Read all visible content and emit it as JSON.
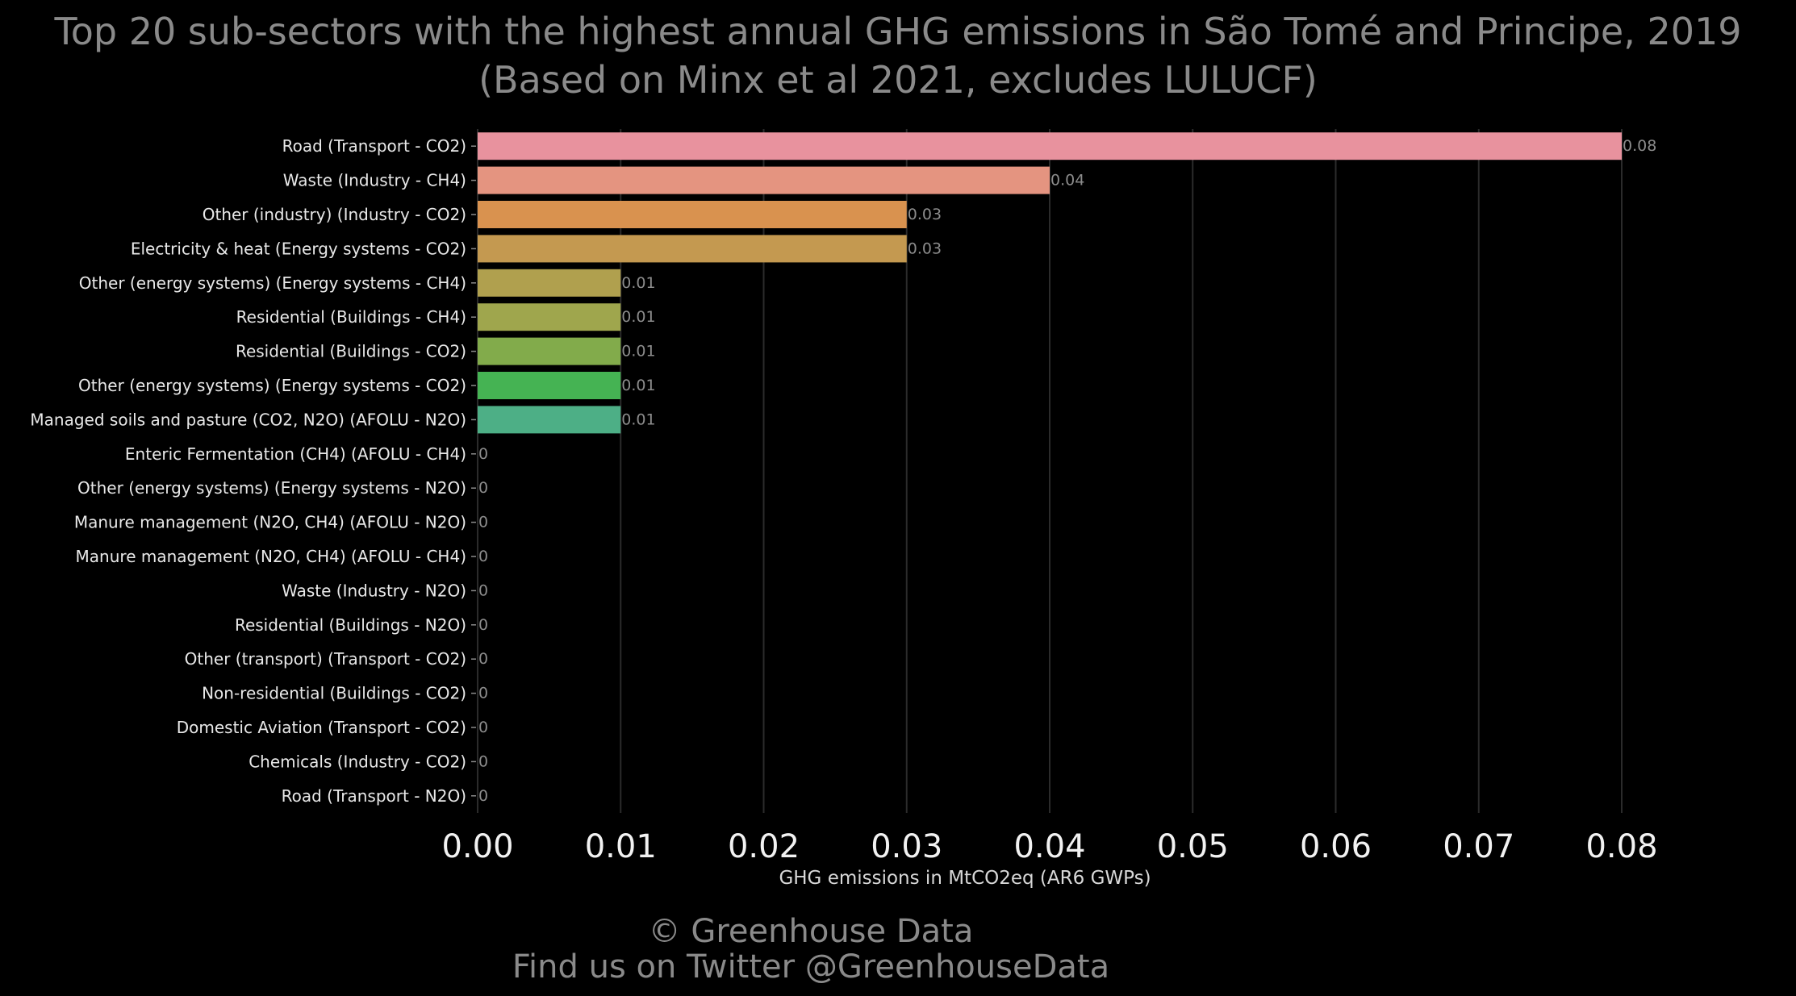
{
  "chart_data": {
    "type": "bar",
    "orientation": "horizontal",
    "title": "Top 20 sub-sectors with the highest annual GHG emissions in São Tomé and Principe, 2019",
    "subtitle": "(Based on Minx et al 2021, excludes LULUCF)",
    "xlabel": "GHG emissions in MtCO2eq (AR6 GWPs)",
    "ylabel": "",
    "xlim": [
      0,
      0.08
    ],
    "x_ticks": [
      "0.00",
      "0.01",
      "0.02",
      "0.03",
      "0.04",
      "0.05",
      "0.06",
      "0.07",
      "0.08"
    ],
    "grid": "vertical",
    "legend": "none",
    "categories": [
      "Road (Transport - CO2)",
      "Waste (Industry - CH4)",
      "Other (industry) (Industry - CO2)",
      "Electricity & heat (Energy systems - CO2)",
      "Other (energy systems) (Energy systems - CH4)",
      "Residential (Buildings - CH4)",
      "Residential (Buildings - CO2)",
      "Other (energy systems) (Energy systems - CO2)",
      "Managed soils and pasture (CO2, N2O) (AFOLU - N2O)",
      "Enteric Fermentation (CH4) (AFOLU - CH4)",
      "Other (energy systems) (Energy systems - N2O)",
      "Manure management (N2O, CH4) (AFOLU - N2O)",
      "Manure management (N2O, CH4) (AFOLU - CH4)",
      "Waste (Industry - N2O)",
      "Residential (Buildings - N2O)",
      "Other (transport) (Transport - CO2)",
      "Non-residential (Buildings - CO2)",
      "Domestic Aviation (Transport - CO2)",
      "Chemicals (Industry - CO2)",
      "Road (Transport - N2O)"
    ],
    "values": [
      0.08,
      0.04,
      0.03,
      0.03,
      0.01,
      0.01,
      0.01,
      0.01,
      0.01,
      0,
      0,
      0,
      0,
      0,
      0,
      0,
      0,
      0,
      0,
      0
    ],
    "value_labels": [
      "0.08",
      "0.04",
      "0.03",
      "0.03",
      "0.01",
      "0.01",
      "0.01",
      "0.01",
      "0.01",
      "0",
      "0",
      "0",
      "0",
      "0",
      "0",
      "0",
      "0",
      "0",
      "0",
      "0"
    ],
    "bar_colors": [
      "#e8929e",
      "#e49480",
      "#d9924f",
      "#c49950",
      "#b0a04e",
      "#9fa64d",
      "#82ab4b",
      "#45b353",
      "#4daf86",
      "#50ad99",
      "#52aca6",
      "#54abb2",
      "#56aabf",
      "#5aa8cf",
      "#62a3de",
      "#7d9ae8",
      "#9e90e6",
      "#bd86dd",
      "#d47fca",
      "#e384b5"
    ]
  },
  "footer": {
    "copyright": "© Greenhouse Data",
    "twitter": "Find us on Twitter @GreenhouseData"
  }
}
